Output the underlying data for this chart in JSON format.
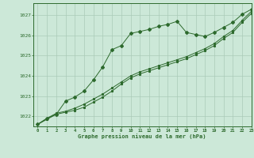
{
  "title": "Graphe pression niveau de la mer (hPa)",
  "background_color": "#cce8d8",
  "grid_color": "#aacab8",
  "line_color": "#2d6a2d",
  "text_color": "#2d6a2d",
  "xlim": [
    -0.5,
    23
  ],
  "ylim": [
    1021.5,
    1027.6
  ],
  "yticks": [
    1022,
    1023,
    1024,
    1025,
    1026,
    1027
  ],
  "xticks": [
    0,
    1,
    2,
    3,
    4,
    5,
    6,
    7,
    8,
    9,
    10,
    11,
    12,
    13,
    14,
    15,
    16,
    17,
    18,
    19,
    20,
    21,
    22,
    23
  ],
  "series_smooth1": {
    "x": [
      0,
      1,
      2,
      3,
      4,
      5,
      6,
      7,
      8,
      9,
      10,
      11,
      12,
      13,
      14,
      15,
      16,
      17,
      18,
      19,
      20,
      21,
      22,
      23
    ],
    "y": [
      1021.6,
      1021.85,
      1022.1,
      1022.2,
      1022.3,
      1022.45,
      1022.7,
      1022.95,
      1023.25,
      1023.6,
      1023.9,
      1024.1,
      1024.25,
      1024.4,
      1024.55,
      1024.7,
      1024.85,
      1025.05,
      1025.25,
      1025.5,
      1025.85,
      1026.15,
      1026.65,
      1027.1
    ]
  },
  "series_smooth2": {
    "x": [
      0,
      1,
      2,
      3,
      4,
      5,
      6,
      7,
      8,
      9,
      10,
      11,
      12,
      13,
      14,
      15,
      16,
      17,
      18,
      19,
      20,
      21,
      22,
      23
    ],
    "y": [
      1021.6,
      1021.9,
      1022.15,
      1022.25,
      1022.4,
      1022.6,
      1022.85,
      1023.1,
      1023.4,
      1023.7,
      1024.0,
      1024.2,
      1024.35,
      1024.5,
      1024.65,
      1024.8,
      1024.95,
      1025.15,
      1025.35,
      1025.6,
      1025.95,
      1026.25,
      1026.75,
      1027.2
    ]
  },
  "series_spiky": {
    "x": [
      0,
      1,
      2,
      3,
      4,
      5,
      6,
      7,
      8,
      9,
      10,
      11,
      12,
      13,
      14,
      15,
      16,
      17,
      18,
      19,
      20,
      21,
      22,
      23
    ],
    "y": [
      1021.6,
      1021.9,
      1022.1,
      1022.75,
      1022.95,
      1023.25,
      1023.8,
      1024.45,
      1025.3,
      1025.5,
      1026.1,
      1026.2,
      1026.3,
      1026.45,
      1026.55,
      1026.7,
      1026.15,
      1026.05,
      1025.95,
      1026.15,
      1026.4,
      1026.65,
      1027.05,
      1027.3
    ]
  }
}
